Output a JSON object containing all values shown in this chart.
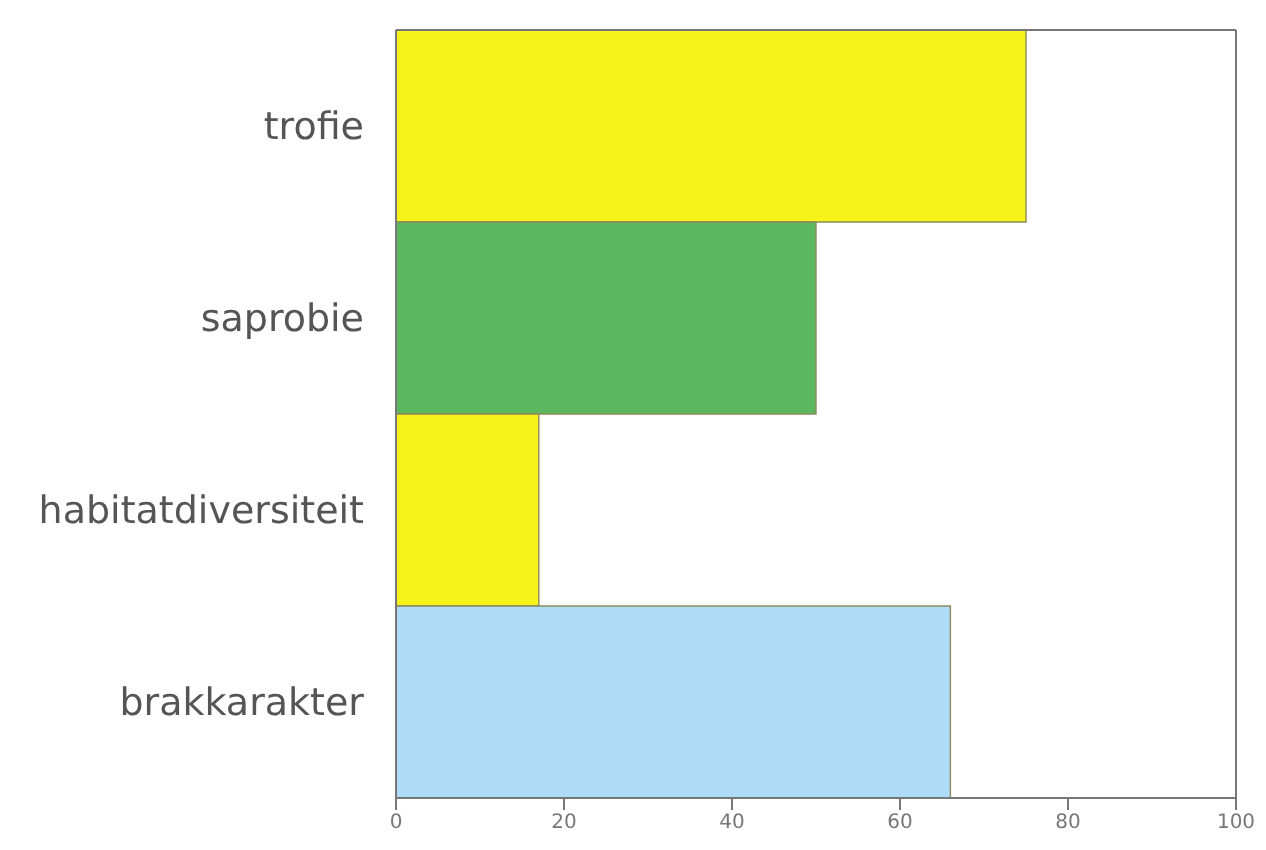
{
  "chart_data": {
    "type": "bar",
    "orientation": "horizontal",
    "categories": [
      "trofie",
      "saprobie",
      "habitatdiversiteit",
      "brakkarakter"
    ],
    "values": [
      75,
      50,
      17,
      66
    ],
    "colors": [
      "#f5f31a",
      "#5cb85f",
      "#f5f31a",
      "#aedcf7"
    ],
    "xlim": [
      0,
      100
    ],
    "xticks": [
      0,
      20,
      40,
      60,
      80,
      100
    ],
    "grid": false
  }
}
